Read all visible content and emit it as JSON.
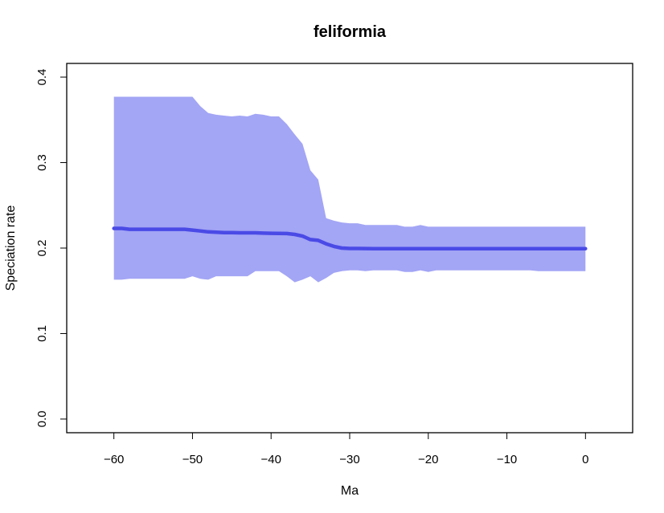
{
  "chart_data": {
    "type": "line",
    "title": "feliformia",
    "xlabel": "Ma",
    "ylabel": "Speciation rate",
    "xlim": [
      -66,
      6
    ],
    "ylim": [
      -0.016,
      0.416
    ],
    "xticks": [
      -60,
      -50,
      -40,
      -30,
      -20,
      -10,
      0
    ],
    "xtick_labels": [
      "−60",
      "−50",
      "−40",
      "−30",
      "−20",
      "−10",
      "0"
    ],
    "yticks": [
      0.0,
      0.1,
      0.2,
      0.3,
      0.4
    ],
    "ytick_labels": [
      "0.0",
      "0.1",
      "0.2",
      "0.3",
      "0.4"
    ],
    "grid": false,
    "colors": {
      "line": "#4a4ae6",
      "band": "#a3a5f5"
    },
    "x": [
      -60,
      -59,
      -58,
      -57,
      -56,
      -55,
      -54,
      -53,
      -52,
      -51,
      -50,
      -49,
      -48,
      -47,
      -46,
      -45,
      -44,
      -43,
      -42,
      -41,
      -40,
      -39,
      -38,
      -37,
      -36,
      -35,
      -34,
      -33,
      -32,
      -31,
      -30,
      -29,
      -28,
      -27,
      -26,
      -25,
      -24,
      -23,
      -22,
      -21,
      -20,
      -19,
      -18,
      -17,
      -16,
      -15,
      -14,
      -13,
      -12,
      -11,
      -10,
      -9,
      -8,
      -7,
      -6,
      -5,
      -4,
      -3,
      -2,
      -1,
      0
    ],
    "series": [
      {
        "values": [
          0.223,
          0.223,
          0.222,
          0.222,
          0.222,
          0.222,
          0.222,
          0.222,
          0.222,
          0.222,
          0.221,
          0.22,
          0.219,
          0.2185,
          0.218,
          0.218,
          0.2178,
          0.2178,
          0.2178,
          0.2175,
          0.2173,
          0.2172,
          0.217,
          0.216,
          0.214,
          0.21,
          0.209,
          0.205,
          0.202,
          0.2,
          0.1995,
          0.1995,
          0.1994,
          0.1993,
          0.1993,
          0.1993,
          0.1993,
          0.1993,
          0.1993,
          0.1993,
          0.1993,
          0.1993,
          0.1993,
          0.1993,
          0.1993,
          0.1993,
          0.1993,
          0.1993,
          0.1993,
          0.1993,
          0.1993,
          0.1993,
          0.1993,
          0.1993,
          0.1993,
          0.1993,
          0.1993,
          0.1993,
          0.1993,
          0.1993,
          0.1993
        ],
        "lower": [
          0.163,
          0.163,
          0.164,
          0.164,
          0.164,
          0.164,
          0.164,
          0.164,
          0.164,
          0.164,
          0.167,
          0.164,
          0.163,
          0.167,
          0.167,
          0.167,
          0.167,
          0.167,
          0.173,
          0.173,
          0.173,
          0.173,
          0.167,
          0.16,
          0.163,
          0.167,
          0.16,
          0.165,
          0.171,
          0.173,
          0.174,
          0.174,
          0.173,
          0.174,
          0.174,
          0.174,
          0.174,
          0.172,
          0.172,
          0.174,
          0.172,
          0.174,
          0.174,
          0.174,
          0.174,
          0.174,
          0.174,
          0.174,
          0.174,
          0.174,
          0.174,
          0.174,
          0.174,
          0.174,
          0.173,
          0.173,
          0.173,
          0.173,
          0.173,
          0.173,
          0.173
        ],
        "upper": [
          0.377,
          0.377,
          0.377,
          0.377,
          0.377,
          0.377,
          0.377,
          0.377,
          0.377,
          0.377,
          0.377,
          0.366,
          0.358,
          0.356,
          0.355,
          0.354,
          0.355,
          0.354,
          0.357,
          0.356,
          0.354,
          0.354,
          0.345,
          0.333,
          0.322,
          0.291,
          0.28,
          0.235,
          0.232,
          0.23,
          0.229,
          0.229,
          0.227,
          0.227,
          0.227,
          0.227,
          0.227,
          0.225,
          0.225,
          0.227,
          0.225,
          0.225,
          0.225,
          0.225,
          0.225,
          0.225,
          0.225,
          0.225,
          0.225,
          0.225,
          0.225,
          0.225,
          0.225,
          0.225,
          0.225,
          0.225,
          0.225,
          0.225,
          0.225,
          0.225,
          0.225
        ]
      }
    ]
  }
}
